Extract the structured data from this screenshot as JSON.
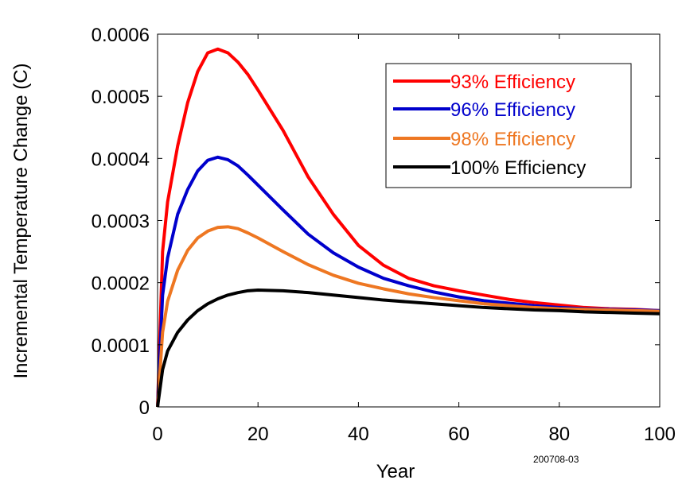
{
  "chart_data": {
    "type": "line",
    "xlabel": "Year",
    "ylabel": "Incremental Temperature Change (C)",
    "xlim": [
      0,
      100
    ],
    "ylim": [
      0,
      0.0006
    ],
    "x_ticks": [
      "0",
      "20",
      "40",
      "60",
      "80",
      "100"
    ],
    "y_ticks": [
      "0",
      "0.0001",
      "0.0002",
      "0.0003",
      "0.0004",
      "0.0005",
      "0.0006"
    ],
    "grid": false,
    "legend_position": "top-right",
    "annotation": "200708-03",
    "x": [
      0,
      1,
      2,
      4,
      6,
      8,
      10,
      12,
      14,
      16,
      18,
      20,
      25,
      30,
      35,
      40,
      45,
      50,
      55,
      60,
      65,
      70,
      75,
      80,
      85,
      90,
      95,
      100
    ],
    "series": [
      {
        "name": "93% Efficiency",
        "color": "#ff0000",
        "values": [
          0,
          0.00025,
          0.00033,
          0.00042,
          0.00049,
          0.00054,
          0.00057,
          0.000576,
          0.00057,
          0.000555,
          0.000535,
          0.00051,
          0.000445,
          0.00037,
          0.00031,
          0.00026,
          0.000228,
          0.000207,
          0.000195,
          0.000187,
          0.00018,
          0.000173,
          0.000168,
          0.000164,
          0.00016,
          0.000158,
          0.000157,
          0.000155
        ]
      },
      {
        "name": "96% Efficiency",
        "color": "#0000cc",
        "values": [
          0,
          0.00018,
          0.00024,
          0.00031,
          0.00035,
          0.00038,
          0.000397,
          0.000402,
          0.000398,
          0.000388,
          0.000373,
          0.000357,
          0.000317,
          0.000278,
          0.000248,
          0.000225,
          0.000207,
          0.000195,
          0.000185,
          0.000177,
          0.000171,
          0.000167,
          0.000163,
          0.00016,
          0.000158,
          0.000157,
          0.000156,
          0.000155
        ]
      },
      {
        "name": "98% Efficiency",
        "color": "#ee7722",
        "values": [
          0,
          0.00012,
          0.00017,
          0.00022,
          0.000252,
          0.000272,
          0.000283,
          0.000289,
          0.00029,
          0.000287,
          0.00028,
          0.000272,
          0.00025,
          0.000229,
          0.000212,
          0.000199,
          0.00019,
          0.000182,
          0.000176,
          0.000171,
          0.000166,
          0.000163,
          0.00016,
          0.000158,
          0.000157,
          0.000156,
          0.000155,
          0.000154
        ]
      },
      {
        "name": "100% Efficiency",
        "color": "#000000",
        "values": [
          0,
          6e-05,
          9e-05,
          0.00012,
          0.00014,
          0.000155,
          0.000166,
          0.000174,
          0.00018,
          0.000184,
          0.000187,
          0.000188,
          0.000187,
          0.000184,
          0.00018,
          0.000176,
          0.000172,
          0.000169,
          0.000166,
          0.000163,
          0.00016,
          0.000158,
          0.000156,
          0.000155,
          0.000153,
          0.000152,
          0.000151,
          0.00015
        ]
      }
    ]
  }
}
